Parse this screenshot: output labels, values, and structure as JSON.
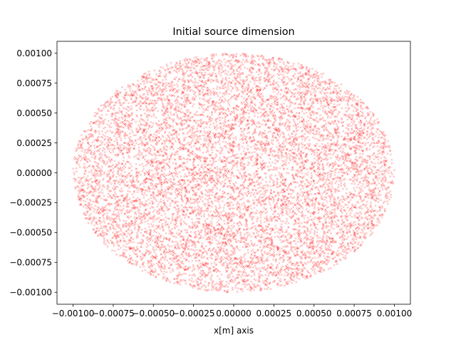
{
  "chart_data": {
    "type": "scatter",
    "title": "Initial source dimension",
    "xlabel": "x[m] axis",
    "ylabel": "",
    "xlim": [
      -0.0011,
      0.0011
    ],
    "ylim": [
      -0.0011,
      0.0011
    ],
    "grid": false,
    "marker_color": "#ff0000",
    "marker_style": "x",
    "distribution": {
      "shape": "uniform-disk",
      "center": [
        0.0,
        0.0
      ],
      "radius": 0.001,
      "count": 10000
    },
    "x_ticks": [
      {
        "value": -0.001,
        "label": "−0.00100"
      },
      {
        "value": -0.00075,
        "label": "−0.00075"
      },
      {
        "value": -0.0005,
        "label": "−0.00050"
      },
      {
        "value": -0.00025,
        "label": "−0.00025"
      },
      {
        "value": 0.0,
        "label": "0.00000"
      },
      {
        "value": 0.00025,
        "label": "0.00025"
      },
      {
        "value": 0.0005,
        "label": "0.00050"
      },
      {
        "value": 0.00075,
        "label": "0.00075"
      },
      {
        "value": 0.001,
        "label": "0.00100"
      }
    ],
    "y_ticks": [
      {
        "value": 0.001,
        "label": "0.00100"
      },
      {
        "value": 0.00075,
        "label": "0.00075"
      },
      {
        "value": 0.0005,
        "label": "0.00050"
      },
      {
        "value": 0.00025,
        "label": "0.00025"
      },
      {
        "value": 0.0,
        "label": "0.00000"
      },
      {
        "value": -0.00025,
        "label": "−0.00025"
      },
      {
        "value": -0.0005,
        "label": "−0.00050"
      },
      {
        "value": -0.00075,
        "label": "−0.00075"
      },
      {
        "value": -0.001,
        "label": "−0.00100"
      }
    ]
  }
}
